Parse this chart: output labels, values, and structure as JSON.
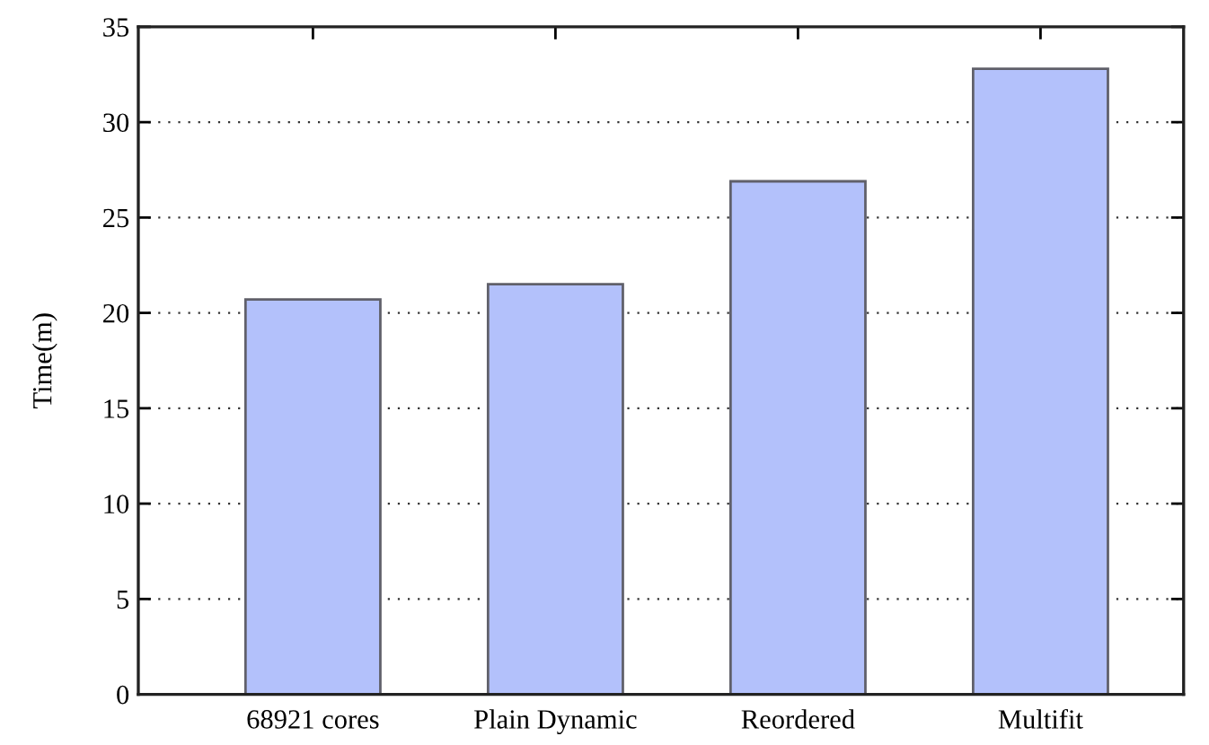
{
  "chart_data": {
    "type": "bar",
    "ylabel": "Time(m)",
    "categories": [
      "68921 cores",
      "Plain Dynamic",
      "Reordered",
      "Multifit"
    ],
    "values": [
      20.7,
      21.5,
      26.9,
      32.8
    ],
    "color": "#b3c1fb",
    "ylim": [
      0,
      35
    ],
    "yticks": [
      0,
      5,
      10,
      15,
      20,
      25,
      30,
      35
    ],
    "grid": "y",
    "legend": false
  }
}
